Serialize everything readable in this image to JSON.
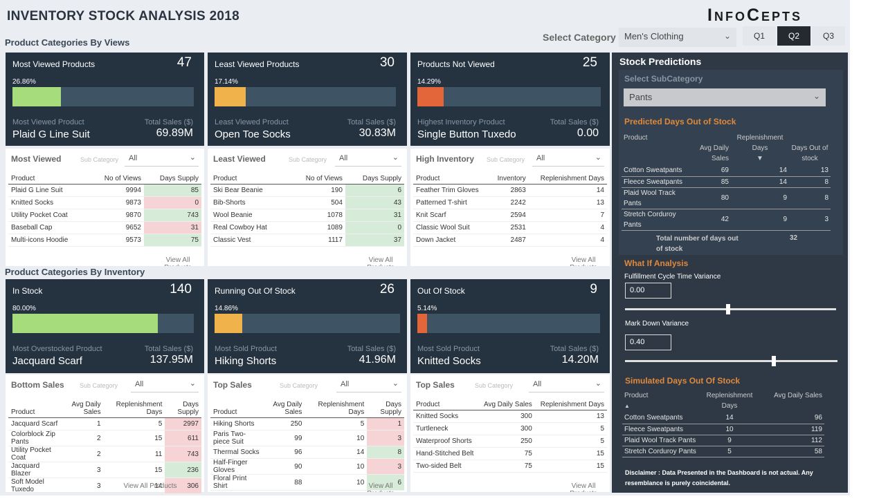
{
  "header": {
    "title": "INVENTORY STOCK ANALYSIS 2018",
    "logo": "InfoCepts",
    "select_category_label": "Select Category",
    "category_value": "Men's Clothing",
    "quarters": [
      "Q1",
      "Q2",
      "Q3"
    ],
    "active_quarter": "Q2"
  },
  "sections": {
    "by_views": "Product Categories By Views",
    "by_inventory": "Product Categories By Inventory"
  },
  "kpis": [
    {
      "title": "Most Viewed Products",
      "count": "47",
      "pct_label": "26.86%",
      "pct": 0.2686,
      "color": "#a7dc7c",
      "sub_left": "Most Viewed Product",
      "sub_right": "Total Sales ($)",
      "product": "Plaid G Line Suit",
      "sales": "69.89M"
    },
    {
      "title": "Least Viewed Products",
      "count": "30",
      "pct_label": "17.14%",
      "pct": 0.1714,
      "color": "#f0b24a",
      "sub_left": "Least Viewed Product",
      "sub_right": "Total Sales ($)",
      "product": "Open Toe Socks",
      "sales": "30.83M"
    },
    {
      "title": "Products Not Viewed",
      "count": "25",
      "pct_label": "14.29%",
      "pct": 0.1429,
      "color": "#e2663a",
      "sub_left": "Highest Inventory Product",
      "sub_right": "Total Sales ($)",
      "product": "Single Button Tuxedo",
      "sales": "0.00"
    },
    {
      "title": "In Stock",
      "count": "140",
      "pct_label": "80.00%",
      "pct": 0.8,
      "color": "#a7dc7c",
      "sub_left": "Most Overstocked Product",
      "sub_right": "Total Sales ($)",
      "product": "Jacquard Scarf",
      "sales": "137.95M"
    },
    {
      "title": "Running Out Of Stock",
      "count": "26",
      "pct_label": "14.86%",
      "pct": 0.1486,
      "color": "#f0b24a",
      "sub_left": "Most Sold Product",
      "sub_right": "Total Sales ($)",
      "product": "Hiking Shorts",
      "sales": "41.96M"
    },
    {
      "title": "Out Of Stock",
      "count": "9",
      "pct_label": "5.14%",
      "pct": 0.0514,
      "color": "#e2663a",
      "sub_left": "Most Sold Product",
      "sub_right": "Total Sales ($)",
      "product": "Knitted Socks",
      "sales": "14.20M"
    }
  ],
  "panels": [
    {
      "title": "Most Viewed",
      "sub": "Sub Category",
      "filter": "All",
      "headers": [
        "Product",
        "No of Views",
        "Days Supply"
      ],
      "rows": [
        [
          "Plaid G Line Suit",
          "9994",
          "85",
          "g"
        ],
        [
          "Knitted Socks",
          "9873",
          "0",
          "p"
        ],
        [
          "Utility Pocket Coat",
          "9870",
          "743",
          "g"
        ],
        [
          "Baseball Cap",
          "9652",
          "31",
          "p"
        ],
        [
          "Multi-icons Hoodie",
          "9573",
          "75",
          "g"
        ]
      ],
      "view_all": "View All Products"
    },
    {
      "title": "Least Viewed",
      "sub": "Sub Category",
      "filter": "All",
      "headers": [
        "Product",
        "No of Views",
        "Days Supply"
      ],
      "rows": [
        [
          "Ski Bear Beanie",
          "190",
          "6",
          "g"
        ],
        [
          "Bib-Shorts",
          "504",
          "43",
          "g"
        ],
        [
          "Wool Beanie",
          "1078",
          "31",
          "g"
        ],
        [
          "Real Cowboy Hat",
          "1089",
          "0",
          "g"
        ],
        [
          "Classic Vest",
          "1117",
          "37",
          "g"
        ]
      ],
      "view_all": "View All Products"
    },
    {
      "title": "High Inventory",
      "sub": "Sub Category",
      "filter": "All",
      "headers": [
        "Product",
        "Inventory",
        "Replenishment Days"
      ],
      "rows": [
        [
          "Feather Trim Gloves",
          "2863",
          "14",
          ""
        ],
        [
          "Patterned T-shirt",
          "2242",
          "13",
          ""
        ],
        [
          "Knit Scarf",
          "2594",
          "7",
          ""
        ],
        [
          "Classic Wool Suit",
          "2531",
          "4",
          ""
        ],
        [
          "Down Jacket",
          "2487",
          "4",
          ""
        ]
      ],
      "view_all": "View All Products"
    },
    {
      "title": "Bottom Sales",
      "sub": "Sub Category",
      "filter": "All",
      "headers": [
        "Product",
        "Avg Daily Sales",
        "Replenishment Days",
        "Days Supply"
      ],
      "rows": [
        [
          "Jacquard Scarf",
          "1",
          "5",
          "2997",
          "p"
        ],
        [
          "Colorblock Zip Pants",
          "2",
          "15",
          "611",
          "p"
        ],
        [
          "Utility Pocket Coat",
          "2",
          "11",
          "743",
          "p"
        ],
        [
          "Jacquard Blazer",
          "3",
          "15",
          "236",
          "g"
        ],
        [
          "Soft Model Tuxedo",
          "3",
          "14",
          "306",
          "p"
        ]
      ],
      "view_all": "View All Products"
    },
    {
      "title": "Top Sales",
      "sub": "Sub Category",
      "filter": "All",
      "headers": [
        "Product",
        "Avg Daily Sales",
        "Replenishment Days",
        "Days Supply"
      ],
      "rows": [
        [
          "Hiking Shorts",
          "250",
          "5",
          "1",
          "p"
        ],
        [
          "Paris Two-piece Suit",
          "99",
          "10",
          "3",
          "p"
        ],
        [
          "Thermal Socks",
          "96",
          "14",
          "8",
          "g"
        ],
        [
          "Half-Finger Gloves",
          "90",
          "10",
          "3",
          "p"
        ],
        [
          "Floral Print Shirt",
          "88",
          "10",
          "6",
          "g"
        ]
      ],
      "view_all": "View All Products"
    },
    {
      "title": "Top Sales",
      "sub": "Sub Category",
      "filter": "All",
      "headers": [
        "Product",
        "Avg Daily Sales",
        "Replenishment Days"
      ],
      "rows": [
        [
          "Knitted Socks",
          "300",
          "13",
          ""
        ],
        [
          "Turtleneck",
          "300",
          "5",
          ""
        ],
        [
          "Waterproof Shorts",
          "250",
          "5",
          ""
        ],
        [
          "Hand-Stitched Belt",
          "75",
          "15",
          ""
        ],
        [
          "Two-sided Belt",
          "75",
          "15",
          ""
        ]
      ],
      "view_all": "View All Products"
    }
  ],
  "predictions": {
    "title": "Stock Predictions",
    "subcat_label": "Select SubCategory",
    "subcat_value": "Pants",
    "days_title": "Predicted Days Out of Stock",
    "headers": [
      "Product",
      "Avg Daily Sales",
      "Replenishment Days",
      "Days Out of stock"
    ],
    "rows": [
      [
        "Cotton Sweatpants",
        "69",
        "14",
        "13"
      ],
      [
        "Fleece Sweatpants",
        "85",
        "14",
        "8"
      ],
      [
        "Plaid Wool Track Pants",
        "80",
        "9",
        "8"
      ],
      [
        "Stretch Corduroy Pants",
        "42",
        "9",
        "3"
      ]
    ],
    "total_label": "Total number of days out of stock",
    "total_value": "32"
  },
  "whatif": {
    "title": "What If Analysis",
    "f_label": "Fulfillment Cycle Time Variance",
    "f_value": "0.00",
    "f_level": 0.49,
    "m_label": "Mark Down Variance",
    "m_value": "0.40",
    "m_level": 0.7
  },
  "simulated": {
    "title": "Simulated Days Out Of Stock",
    "headers": [
      "Product",
      "Replenishment Days",
      "Avg Daily Sales"
    ],
    "rows": [
      [
        "Cotton Sweatpants",
        "14",
        "96"
      ],
      [
        "Fleece Sweatpants",
        "10",
        "119"
      ],
      [
        "Plaid Wool Track Pants",
        "9",
        "112"
      ],
      [
        "Stretch Corduroy Pants",
        "5",
        "58"
      ]
    ],
    "disclaimer": "Disclaimer : Data Presented in the Dashboard is not actual. Any resemblance is purely coincidental."
  }
}
